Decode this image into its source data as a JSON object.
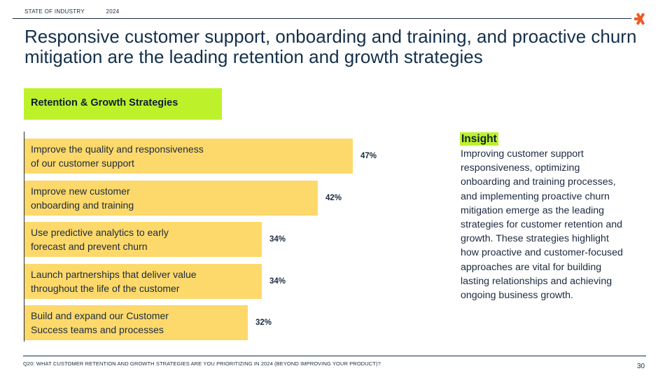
{
  "header": {
    "section": "STATE OF INDUSTRY",
    "year": "2024"
  },
  "title": "Responsive customer support, onboarding and training, and proactive churn mitigation are the leading retention and growth strategies",
  "chart_data": {
    "type": "bar",
    "orientation": "horizontal",
    "title": "Retention & Growth Strategies",
    "categories": [
      "Improve the quality and responsiveness\nof our customer support",
      "Improve new customer\nonboarding and training",
      "Use predictive analytics to early\nforecast and prevent churn",
      "Launch partnerships that deliver value\nthroughout the life of the customer",
      "Build and expand our Customer\nSuccess teams and processes"
    ],
    "values": [
      47,
      42,
      34,
      34,
      32
    ],
    "value_labels": [
      "47%",
      "42%",
      "34%",
      "34%",
      "32%"
    ],
    "unit": "%",
    "bar_color": "#fdd96b",
    "grid": false
  },
  "insight": {
    "heading": "Insight",
    "body": "Improving customer support responsiveness, optimizing onboarding and training processes, and implementing proactive churn mitigation emerge as the leading strategies for customer retention and growth. These strategies highlight how proactive and customer-focused approaches are vital for building lasting relationships and achieving ongoing business growth."
  },
  "footer": {
    "question": "Q20: WHAT CUSTOMER RETENTION AND GROWTH STRATEGIES ARE YOU PRIORITIZING IN 2024 (BEYOND IMPROVING YOUR PRODUCT)?",
    "page": "30"
  },
  "colors": {
    "accent_green": "#bdf22b",
    "bar_yellow": "#fdd96b",
    "text_navy": "#14304a",
    "logo_orange": "#ef5a24"
  },
  "logo_icon": "asterisk-logo-icon"
}
